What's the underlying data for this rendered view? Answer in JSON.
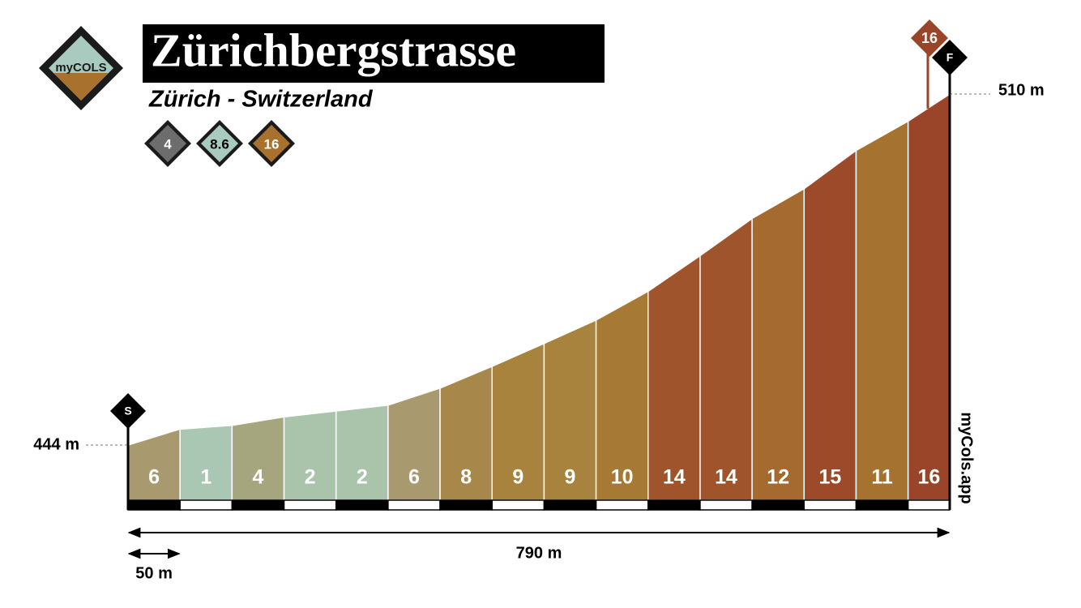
{
  "chart_data": {
    "type": "climb-profile",
    "title": "Zürichbergstrasse",
    "subtitle": "Zürich - Switzerland",
    "logo": "myCOLS",
    "watermark": "myCols.app",
    "badges": [
      {
        "value": 4,
        "color": "#6d6d6d"
      },
      {
        "value": 8.6,
        "color": "#a9cbbf"
      },
      {
        "value": 16,
        "color": "#a8722e"
      }
    ],
    "start_marker": "S",
    "finish_marker": "F",
    "max_gradient": 16,
    "max_gradient_color": "#9a4529",
    "start_elevation_label": "444 m",
    "finish_elevation_label": "510 m",
    "distance_label": "790 m",
    "scale_label": "50 m",
    "distances": [
      0,
      50,
      100,
      150,
      200,
      250,
      300,
      350,
      400,
      450,
      500,
      550,
      600,
      650,
      700,
      750,
      790
    ],
    "elevations": [
      444,
      447,
      447.7,
      449.3,
      450.4,
      451.5,
      454.7,
      458.8,
      463.1,
      467.5,
      472.9,
      479.6,
      486.6,
      492.2,
      499.4,
      504.9,
      510
    ],
    "gradients": [
      6,
      1,
      4,
      2,
      2,
      6,
      8,
      9,
      9,
      10,
      14,
      14,
      12,
      15,
      11,
      16
    ],
    "colors": [
      "#a89a6e",
      "#a9c7b2",
      "#a6a67e",
      "#a9c4ab",
      "#a9c4ab",
      "#a89a6e",
      "#a7884a",
      "#a7833e",
      "#a7833e",
      "#a67a35",
      "#9f542c",
      "#9f542c",
      "#a46a30",
      "#9c4a2a",
      "#a5722f",
      "#9a4529"
    ]
  }
}
